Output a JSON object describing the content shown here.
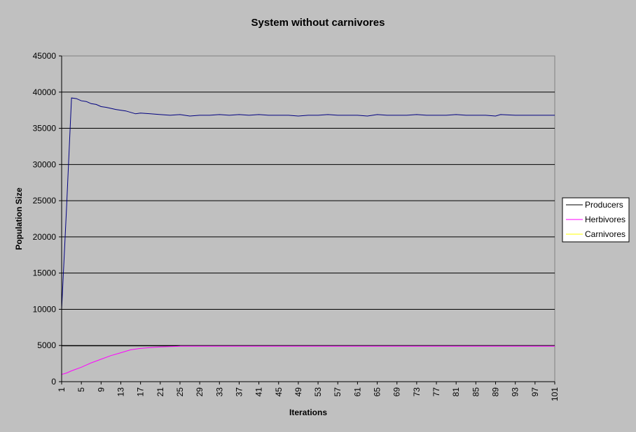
{
  "chart_data": {
    "type": "line",
    "title": "System without carnivores",
    "xlabel": "Iterations",
    "ylabel": "Population Size",
    "ylim": [
      0,
      45000
    ],
    "yticks": [
      0,
      5000,
      10000,
      15000,
      20000,
      25000,
      30000,
      35000,
      40000,
      45000
    ],
    "ytick_labels": [
      "0",
      "5000",
      "10000",
      "15000",
      "20000",
      "25000",
      "30000",
      "35000",
      "40000",
      "45000"
    ],
    "xlim": [
      1,
      101
    ],
    "xtick_labels": [
      "1",
      "5",
      "9",
      "13",
      "17",
      "21",
      "25",
      "29",
      "33",
      "37",
      "41",
      "45",
      "49",
      "53",
      "57",
      "61",
      "65",
      "69",
      "73",
      "77",
      "81",
      "85",
      "89",
      "93",
      "97",
      "101"
    ],
    "grid": "horizontal major lines",
    "legend_position": "right",
    "plot_background": "#c0c0c0",
    "series": [
      {
        "name": "Producers",
        "legend_color": "#000000",
        "line_color": "#000080",
        "x": [
          1,
          2,
          3,
          4,
          5,
          6,
          7,
          8,
          9,
          10,
          12,
          14,
          16,
          17,
          19,
          21,
          23,
          25,
          27,
          29,
          31,
          33,
          35,
          37,
          39,
          41,
          43,
          45,
          47,
          49,
          51,
          53,
          55,
          57,
          59,
          61,
          63,
          65,
          67,
          69,
          71,
          73,
          75,
          77,
          79,
          81,
          83,
          85,
          87,
          89,
          90,
          93,
          97,
          99,
          101
        ],
        "y": [
          10000,
          24000,
          39200,
          39100,
          38800,
          38700,
          38400,
          38300,
          38000,
          37900,
          37600,
          37400,
          37000,
          37100,
          37000,
          36900,
          36800,
          36900,
          36700,
          36800,
          36800,
          36900,
          36800,
          36900,
          36800,
          36900,
          36800,
          36800,
          36800,
          36700,
          36800,
          36800,
          36900,
          36800,
          36800,
          36800,
          36700,
          36900,
          36800,
          36800,
          36800,
          36900,
          36800,
          36800,
          36800,
          36900,
          36800,
          36800,
          36800,
          36700,
          36900,
          36800,
          36800,
          36800,
          36800
        ]
      },
      {
        "name": "Herbivores",
        "legend_color": "#ff00ff",
        "line_color": "#ff00ff",
        "x": [
          1,
          2,
          3,
          5,
          7,
          9,
          11,
          13,
          15,
          17,
          19,
          21,
          23,
          25,
          101
        ],
        "y": [
          1000,
          1200,
          1500,
          2000,
          2600,
          3100,
          3600,
          4000,
          4400,
          4600,
          4700,
          4800,
          4850,
          4900,
          4900
        ]
      },
      {
        "name": "Carnivores",
        "legend_color": "#ffff00",
        "line_color": "#000000",
        "x": [
          1,
          25
        ],
        "y": [
          4950,
          4950
        ]
      }
    ]
  }
}
